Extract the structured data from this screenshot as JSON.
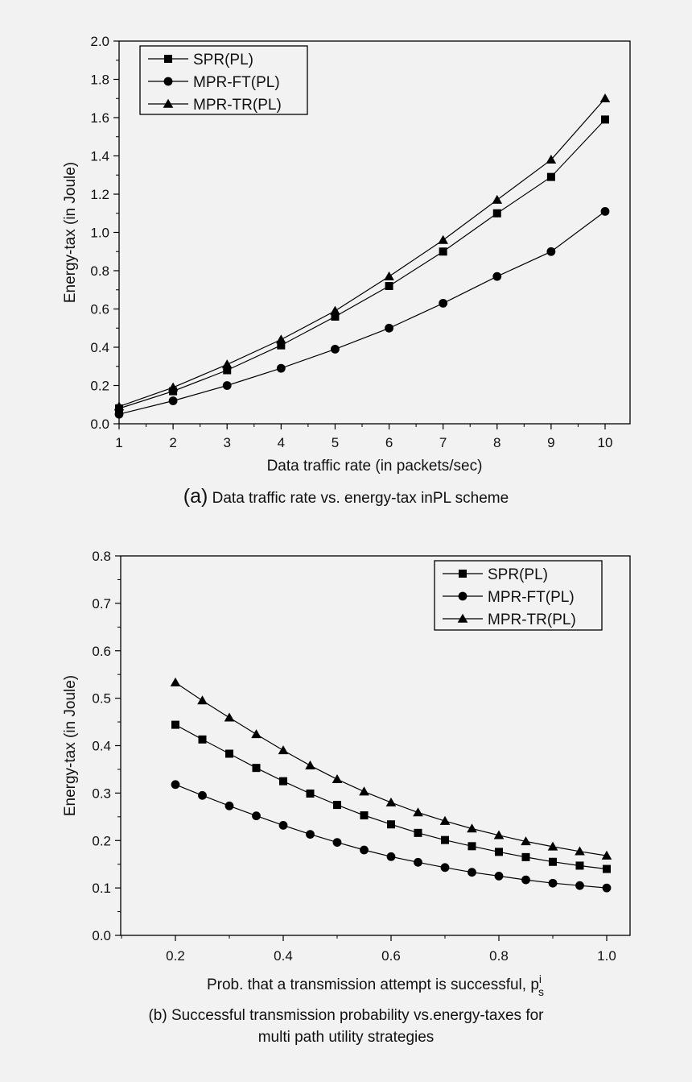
{
  "chart_data": [
    {
      "type": "line",
      "panel_id": "a",
      "title": "",
      "xlabel": "Data traffic rate (in packets/sec)",
      "ylabel": "Energy-tax (in Joule)",
      "xlim": [
        1,
        10.5
      ],
      "ylim": [
        0,
        2.0
      ],
      "x_ticks": [
        "1",
        "2",
        "3",
        "4",
        "5",
        "6",
        "7",
        "8",
        "9",
        "10"
      ],
      "y_ticks": [
        "0.0",
        "0.2",
        "0.4",
        "0.6",
        "0.8",
        "1.0",
        "1.2",
        "1.4",
        "1.6",
        "1.8",
        "2.0"
      ],
      "x": [
        1,
        2,
        3,
        4,
        5,
        6,
        7,
        8,
        9,
        10
      ],
      "grid": false,
      "legend_position": "top-left",
      "series": [
        {
          "name": "SPR(PL)",
          "marker": "square",
          "values": [
            0.08,
            0.17,
            0.28,
            0.41,
            0.56,
            0.72,
            0.9,
            1.1,
            1.29,
            1.59
          ]
        },
        {
          "name": "MPR-FT(PL)",
          "marker": "circle",
          "values": [
            0.05,
            0.12,
            0.2,
            0.29,
            0.39,
            0.5,
            0.63,
            0.77,
            0.9,
            1.11
          ]
        },
        {
          "name": "MPR-TR(PL)",
          "marker": "triangle",
          "values": [
            0.09,
            0.19,
            0.31,
            0.44,
            0.59,
            0.77,
            0.96,
            1.17,
            1.38,
            1.7
          ]
        }
      ],
      "caption_label": "(a)",
      "caption_text": "Data traffic rate vs. energy-tax inPL scheme"
    },
    {
      "type": "line",
      "panel_id": "b",
      "title": "",
      "xlabel": "Prob. that a transmission attempt is successful, p",
      "xlabel_sup": "i",
      "xlabel_sub": "s",
      "ylabel": "Energy-tax (in Joule)",
      "xlim": [
        0.1,
        1.05
      ],
      "ylim": [
        0,
        0.8
      ],
      "x_ticks": [
        "0.2",
        "0.4",
        "0.6",
        "0.8",
        "1.0"
      ],
      "y_ticks": [
        "0.0",
        "0.1",
        "0.2",
        "0.3",
        "0.4",
        "0.5",
        "0.6",
        "0.7",
        "0.8"
      ],
      "x": [
        0.2,
        0.25,
        0.3,
        0.35,
        0.4,
        0.45,
        0.5,
        0.55,
        0.6,
        0.65,
        0.7,
        0.75,
        0.8,
        0.85,
        0.9,
        0.95,
        1.0
      ],
      "grid": false,
      "legend_position": "top-right",
      "series": [
        {
          "name": "SPR(PL)",
          "marker": "square",
          "values": [
            0.444,
            0.413,
            0.383,
            0.353,
            0.325,
            0.299,
            0.275,
            0.253,
            0.234,
            0.216,
            0.201,
            0.188,
            0.176,
            0.165,
            0.155,
            0.147,
            0.14
          ]
        },
        {
          "name": "MPR-FT(PL)",
          "marker": "circle",
          "values": [
            0.318,
            0.295,
            0.273,
            0.252,
            0.232,
            0.213,
            0.196,
            0.18,
            0.166,
            0.154,
            0.143,
            0.133,
            0.125,
            0.117,
            0.11,
            0.105,
            0.1
          ]
        },
        {
          "name": "MPR-TR(PL)",
          "marker": "triangle",
          "values": [
            0.533,
            0.495,
            0.459,
            0.424,
            0.39,
            0.358,
            0.329,
            0.303,
            0.28,
            0.259,
            0.241,
            0.225,
            0.211,
            0.198,
            0.187,
            0.177,
            0.168
          ]
        }
      ],
      "caption_label": "(b)",
      "caption_line1": "Successful transmission probability vs.energy-taxes for",
      "caption_line2": "multi path utility strategies"
    }
  ]
}
